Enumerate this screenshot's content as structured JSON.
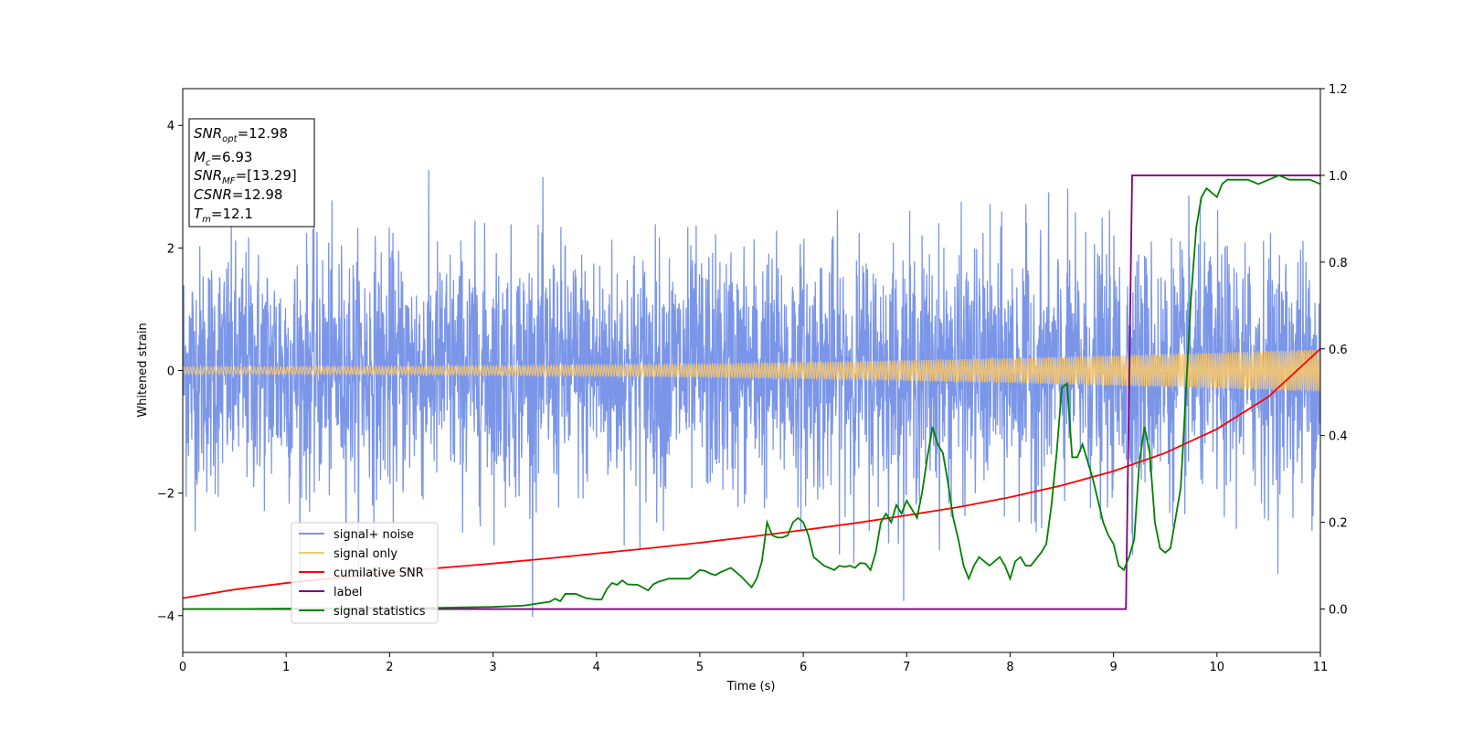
{
  "chart_data": {
    "type": "line",
    "xlabel": "Time (s)",
    "ylabel": "Whitened strain",
    "xlim": [
      0,
      11
    ],
    "ylim": [
      -4.6,
      4.6
    ],
    "y2lim": [
      -0.1,
      1.2
    ],
    "xticks": [
      "0",
      "1",
      "2",
      "3",
      "4",
      "5",
      "6",
      "7",
      "8",
      "9",
      "10",
      "11"
    ],
    "yticks": [
      "4",
      "2",
      "0",
      "−2",
      "−4"
    ],
    "y2ticks": [
      "1.2",
      "1.0",
      "0.8",
      "0.6",
      "0.4",
      "0.2",
      "0.0"
    ],
    "grid": false,
    "legend_position": "lower-left",
    "annotation": {
      "snr_opt": "=12.98",
      "mc": "=6.93",
      "snr_mf": "=[13.29]",
      "csnr": "=12.98",
      "tm": "=12.1"
    },
    "series": [
      {
        "name": "signal+ noise",
        "axis": "left",
        "color": "#7b96e8",
        "description": "white noise, std ~1.0, range about -4 to 4.2",
        "noise_std": 1.0,
        "n_points": 3400
      },
      {
        "name": "signal only",
        "axis": "left",
        "color": "#f6c66f",
        "description": "chirp oscillation, amplitude growing from ~0.06 to ~0.35",
        "amplitude_start": 0.06,
        "amplitude_end": 0.35
      },
      {
        "name": "cumilative SNR",
        "axis": "right",
        "color": "#ff0000",
        "x": [
          0,
          0.5,
          1,
          1.5,
          2,
          2.5,
          3,
          3.5,
          4,
          4.5,
          5,
          5.5,
          6,
          6.5,
          7,
          7.5,
          8,
          8.5,
          9,
          9.5,
          10,
          10.5,
          11
        ],
        "y": [
          0.025,
          0.045,
          0.06,
          0.072,
          0.084,
          0.095,
          0.105,
          0.116,
          0.128,
          0.14,
          0.153,
          0.167,
          0.182,
          0.198,
          0.216,
          0.235,
          0.258,
          0.285,
          0.318,
          0.36,
          0.415,
          0.49,
          0.6
        ]
      },
      {
        "name": "label",
        "axis": "right",
        "color": "#800080",
        "x": [
          0,
          9.12,
          9.18,
          11
        ],
        "y": [
          0,
          0,
          1,
          1
        ]
      },
      {
        "name": "signal statistics",
        "axis": "right",
        "color": "#008000",
        "x": [
          0,
          0.5,
          1,
          1.5,
          1.8,
          2.0,
          2.5,
          3.0,
          3.3,
          3.55,
          3.6,
          3.65,
          3.7,
          3.8,
          3.9,
          4.0,
          4.05,
          4.1,
          4.15,
          4.2,
          4.25,
          4.3,
          4.4,
          4.5,
          4.55,
          4.6,
          4.7,
          4.8,
          4.9,
          5.0,
          5.05,
          5.1,
          5.15,
          5.2,
          5.3,
          5.4,
          5.5,
          5.55,
          5.6,
          5.65,
          5.7,
          5.75,
          5.8,
          5.85,
          5.9,
          5.95,
          6.0,
          6.05,
          6.1,
          6.2,
          6.3,
          6.35,
          6.4,
          6.45,
          6.5,
          6.55,
          6.6,
          6.65,
          6.7,
          6.75,
          6.8,
          6.85,
          6.9,
          6.95,
          7.0,
          7.05,
          7.1,
          7.15,
          7.2,
          7.25,
          7.3,
          7.35,
          7.4,
          7.45,
          7.5,
          7.55,
          7.6,
          7.65,
          7.7,
          7.75,
          7.8,
          7.85,
          7.9,
          7.95,
          8.0,
          8.05,
          8.1,
          8.15,
          8.2,
          8.3,
          8.35,
          8.4,
          8.45,
          8.5,
          8.55,
          8.6,
          8.65,
          8.7,
          8.75,
          8.8,
          8.85,
          8.9,
          8.95,
          9.0,
          9.05,
          9.1,
          9.15,
          9.2,
          9.25,
          9.3,
          9.35,
          9.4,
          9.45,
          9.5,
          9.55,
          9.6,
          9.65,
          9.7,
          9.75,
          9.8,
          9.85,
          9.9,
          9.95,
          10.0,
          10.05,
          10.1,
          10.2,
          10.3,
          10.4,
          10.5,
          10.6,
          10.7,
          10.8,
          10.9,
          11.0
        ],
        "y": [
          0.0,
          0.0,
          0.001,
          0.001,
          0.003,
          0.002,
          0.003,
          0.005,
          0.008,
          0.017,
          0.024,
          0.018,
          0.035,
          0.035,
          0.025,
          0.022,
          0.022,
          0.046,
          0.06,
          0.056,
          0.066,
          0.057,
          0.056,
          0.043,
          0.057,
          0.063,
          0.07,
          0.07,
          0.07,
          0.09,
          0.088,
          0.082,
          0.078,
          0.085,
          0.095,
          0.075,
          0.05,
          0.07,
          0.11,
          0.2,
          0.17,
          0.165,
          0.165,
          0.17,
          0.2,
          0.21,
          0.2,
          0.17,
          0.12,
          0.1,
          0.09,
          0.1,
          0.097,
          0.1,
          0.095,
          0.106,
          0.105,
          0.09,
          0.13,
          0.2,
          0.22,
          0.2,
          0.24,
          0.22,
          0.25,
          0.23,
          0.21,
          0.27,
          0.35,
          0.42,
          0.38,
          0.36,
          0.29,
          0.21,
          0.16,
          0.1,
          0.07,
          0.1,
          0.12,
          0.11,
          0.1,
          0.11,
          0.12,
          0.1,
          0.07,
          0.11,
          0.12,
          0.1,
          0.1,
          0.13,
          0.15,
          0.24,
          0.36,
          0.51,
          0.52,
          0.35,
          0.35,
          0.38,
          0.34,
          0.3,
          0.25,
          0.2,
          0.17,
          0.15,
          0.1,
          0.09,
          0.12,
          0.16,
          0.34,
          0.42,
          0.36,
          0.2,
          0.14,
          0.13,
          0.14,
          0.21,
          0.28,
          0.5,
          0.72,
          0.88,
          0.95,
          0.97,
          0.96,
          0.95,
          0.98,
          0.99,
          0.99,
          0.99,
          0.98,
          0.99,
          1.0,
          0.99,
          0.99,
          0.99,
          0.98
        ]
      }
    ]
  }
}
